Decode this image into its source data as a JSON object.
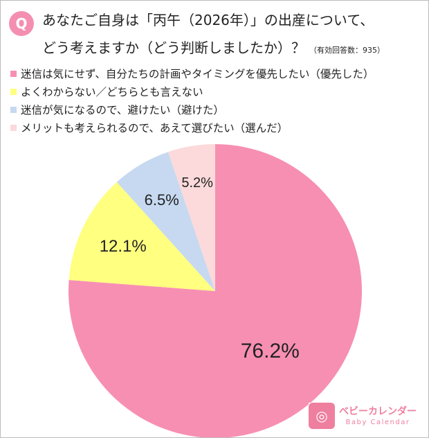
{
  "question_badge": "Q",
  "title_line1": "あなたご自身は「丙午（2026年）」の出産について、",
  "title_line2": "どう考えますか（どう判断しましたか）？",
  "note": "（有効回答数：935）",
  "logo": {
    "text": "ベビーカレンダー",
    "subtext": "Baby Calendar"
  },
  "chart_data": {
    "type": "pie",
    "start": "12 o'clock, clockwise",
    "legend_position": "top",
    "categories": [
      "迷信は気にせず、自分たちの計画やタイミングを優先したい（優先した）",
      "よくわからない／どちらとも言えない",
      "迷信が気になるので、避けたい（避けた）",
      "メリットも考えられるので、あえて選びたい（選んだ）"
    ],
    "values": [
      76.2,
      12.1,
      6.5,
      5.2
    ],
    "labels": [
      "76.2%",
      "12.1%",
      "6.5%",
      "5.2%"
    ],
    "colors": [
      "#f78fb3",
      "#ffff80",
      "#c6d9f1",
      "#fcd9da"
    ]
  }
}
